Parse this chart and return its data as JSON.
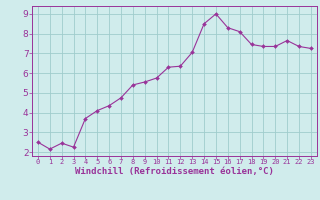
{
  "x_values": [
    0,
    1,
    2,
    3,
    4,
    5,
    6,
    7,
    8,
    9,
    10,
    11,
    12,
    13,
    14,
    15,
    16,
    17,
    18,
    19,
    20,
    21,
    22,
    23
  ],
  "y_values": [
    2.5,
    2.15,
    2.45,
    2.25,
    3.7,
    4.1,
    4.35,
    4.75,
    5.4,
    5.55,
    5.75,
    6.3,
    6.35,
    7.05,
    8.5,
    9.0,
    8.3,
    8.1,
    7.45,
    7.35,
    7.35,
    7.65,
    7.35,
    7.25
  ],
  "line_color": "#993399",
  "marker_color": "#993399",
  "bg_color": "#d0ecec",
  "grid_color": "#a0cccc",
  "axis_color": "#993399",
  "tick_color": "#993399",
  "xlabel": "Windchill (Refroidissement éolien,°C)",
  "ylim": [
    1.8,
    9.4
  ],
  "xlim": [
    -0.5,
    23.5
  ],
  "yticks": [
    2,
    3,
    4,
    5,
    6,
    7,
    8,
    9
  ],
  "xticks": [
    0,
    1,
    2,
    3,
    4,
    5,
    6,
    7,
    8,
    9,
    10,
    11,
    12,
    13,
    14,
    15,
    16,
    17,
    18,
    19,
    20,
    21,
    22,
    23
  ],
  "xlabel_fontsize": 6.5,
  "xtick_fontsize": 5.0,
  "ytick_fontsize": 6.5
}
